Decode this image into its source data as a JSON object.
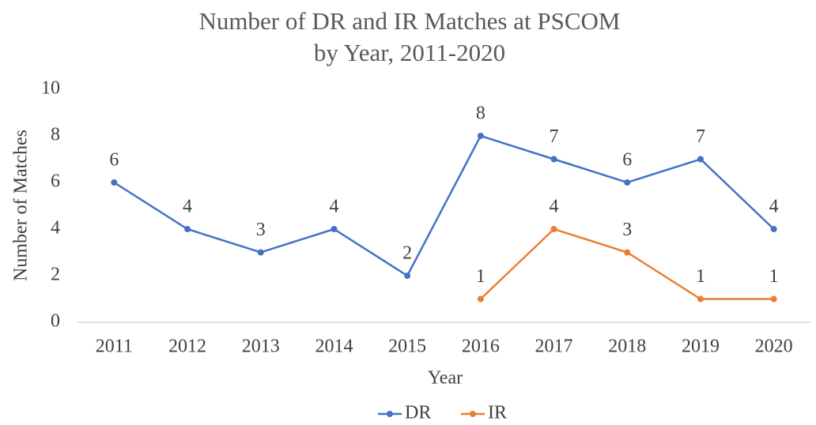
{
  "chart_data": {
    "type": "line",
    "title": [
      "Number of DR and IR Matches at PSCOM",
      "by Year, 2011-2020"
    ],
    "x_label": "Year",
    "y_label": "Number of Matches",
    "categories": [
      "2011",
      "2012",
      "2013",
      "2014",
      "2015",
      "2016",
      "2017",
      "2018",
      "2019",
      "2020"
    ],
    "series": [
      {
        "name": "DR",
        "color": "#4472c4",
        "values": [
          6,
          4,
          3,
          4,
          2,
          8,
          7,
          6,
          7,
          4
        ]
      },
      {
        "name": "IR",
        "color": "#ed7d31",
        "values": [
          null,
          null,
          null,
          null,
          null,
          1,
          4,
          3,
          1,
          1
        ]
      }
    ],
    "ylim": [
      0,
      10
    ],
    "yticks": [
      0,
      2,
      4,
      6,
      8,
      10
    ],
    "grid": false,
    "legend": "bottom"
  }
}
